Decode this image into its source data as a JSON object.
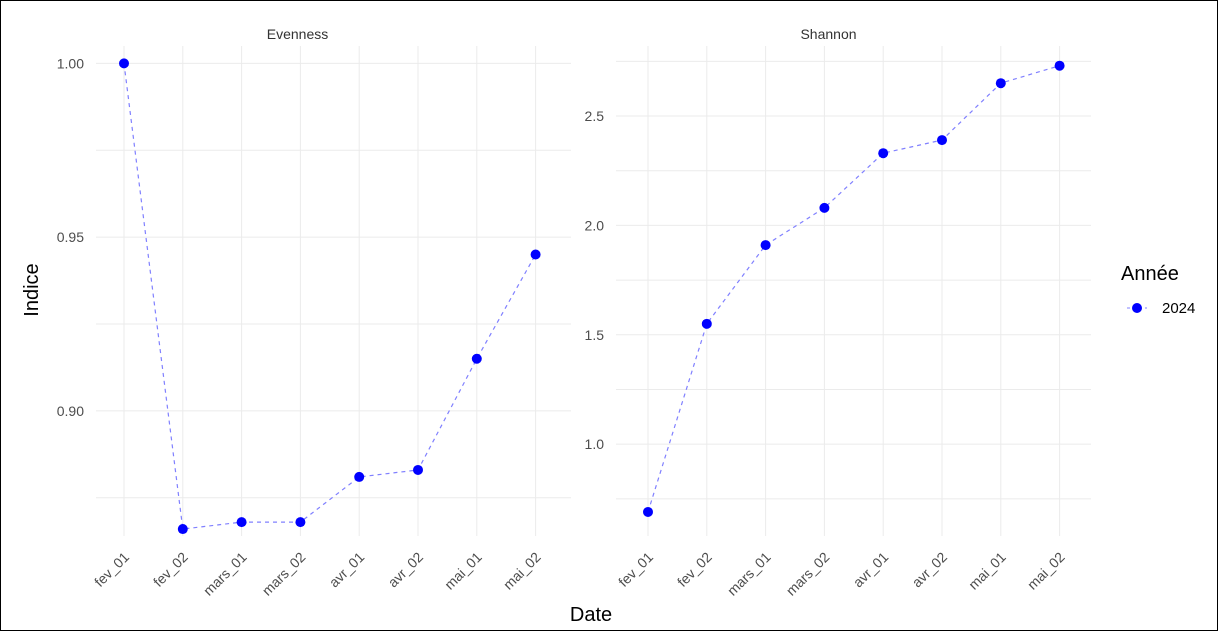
{
  "chart_data": {
    "type": "line",
    "xlabel": "Date",
    "ylabel": "Indice",
    "legend": {
      "title": "Année",
      "placement": "right",
      "entries": [
        {
          "label": "2024",
          "color": "#0000ff"
        }
      ]
    },
    "line_style": "dashed",
    "grid": true,
    "facets": [
      {
        "title": "Evenness",
        "categories": [
          "fev_01",
          "fev_02",
          "mars_01",
          "mars_02",
          "avr_01",
          "avr_02",
          "mai_01",
          "mai_02"
        ],
        "series": [
          {
            "name": "2024",
            "values": [
              1.0,
              0.866,
              0.868,
              0.868,
              0.881,
              0.883,
              0.915,
              0.945
            ]
          }
        ],
        "yticks": [
          "1.00",
          "0.95",
          "0.90"
        ],
        "ylim": [
          0.864,
          1.005
        ]
      },
      {
        "title": "Shannon",
        "categories": [
          "fev_01",
          "fev_02",
          "mars_01",
          "mars_02",
          "avr_01",
          "avr_02",
          "mai_01",
          "mai_02"
        ],
        "series": [
          {
            "name": "2024",
            "values": [
              0.69,
              1.55,
              1.91,
              2.08,
              2.33,
              2.39,
              2.65,
              2.73
            ]
          }
        ],
        "yticks": [
          "2.5",
          "2.0",
          "1.5",
          "1.0"
        ],
        "ylim": [
          0.58,
          2.82
        ]
      }
    ]
  }
}
